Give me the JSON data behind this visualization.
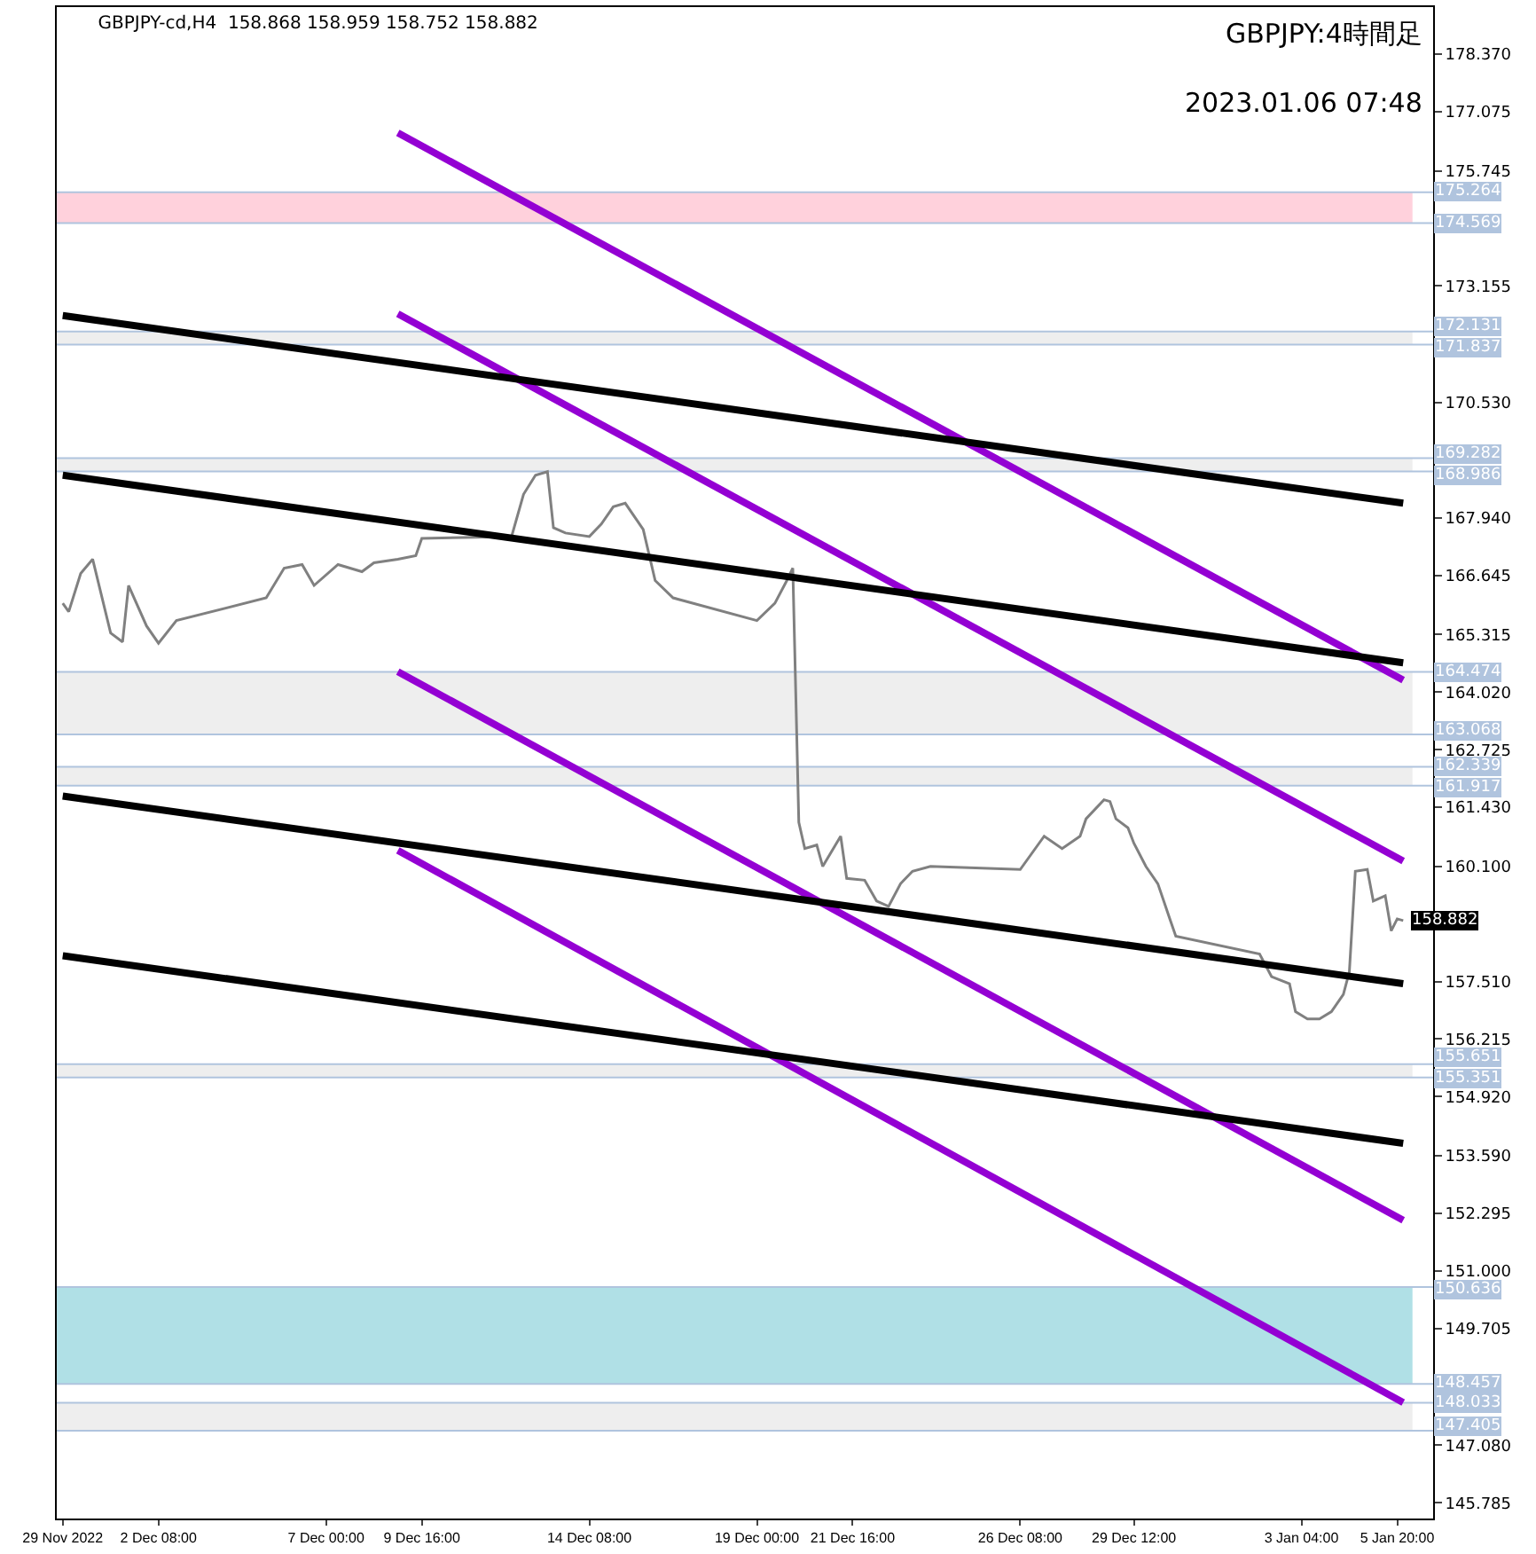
{
  "chart_data": {
    "type": "line",
    "title": "GBPJPY-cd,H4  158.868 158.959 158.752 158.882",
    "annotations": [
      "GBPJPY:4時間足",
      "2023.01.06 07:48"
    ],
    "xlim": [
      "2022-11-29T12:00",
      "2023-01-06T20:00"
    ],
    "xticks": [
      {
        "value": "2022-11-29T16:00",
        "label": "29 Nov 2022"
      },
      {
        "value": "2022-12-02T08:00",
        "label": "2 Dec 08:00"
      },
      {
        "value": "2022-12-07T00:00",
        "label": "7 Dec 00:00"
      },
      {
        "value": "2022-12-09T16:00",
        "label": "9 Dec 16:00"
      },
      {
        "value": "2022-12-14T08:00",
        "label": "14 Dec 08:00"
      },
      {
        "value": "2022-12-19T00:00",
        "label": "19 Dec 00:00"
      },
      {
        "value": "2022-12-21T16:00",
        "label": "21 Dec 16:00"
      },
      {
        "value": "2022-12-26T08:00",
        "label": "26 Dec 08:00"
      },
      {
        "value": "2022-12-29T12:00",
        "label": "29 Dec 12:00"
      },
      {
        "value": "2023-01-03T04:00",
        "label": "3 Jan 04:00"
      },
      {
        "value": "2023-01-05T20:00",
        "label": "5 Jan 20:00"
      }
    ],
    "ylim": [
      145.43,
      179.43
    ],
    "yticks": [
      {
        "value": 178.37,
        "label": "178.370"
      },
      {
        "value": 177.075,
        "label": "177.075"
      },
      {
        "value": 175.745,
        "label": "175.745"
      },
      {
        "value": 173.155,
        "label": "173.155"
      },
      {
        "value": 170.53,
        "label": "170.530"
      },
      {
        "value": 167.94,
        "label": "167.940"
      },
      {
        "value": 166.645,
        "label": "166.645"
      },
      {
        "value": 165.315,
        "label": "165.315"
      },
      {
        "value": 164.02,
        "label": "164.020"
      },
      {
        "value": 162.725,
        "label": "162.725"
      },
      {
        "value": 161.43,
        "label": "161.430"
      },
      {
        "value": 160.1,
        "label": "160.100"
      },
      {
        "value": 157.51,
        "label": "157.510"
      },
      {
        "value": 156.215,
        "label": "156.215"
      },
      {
        "value": 154.92,
        "label": "154.920"
      },
      {
        "value": 153.59,
        "label": "153.590"
      },
      {
        "value": 152.295,
        "label": "152.295"
      },
      {
        "value": 151.0,
        "label": "151.000"
      },
      {
        "value": 149.705,
        "label": "149.705"
      },
      {
        "value": 147.08,
        "label": "147.080"
      },
      {
        "value": 145.785,
        "label": "145.785"
      }
    ],
    "grid": false,
    "marker": "none",
    "line_style": "solid",
    "series": [
      {
        "color": "#808080",
        "x": [
          "2022-11-29T16:00",
          "2022-11-29T20:00",
          "2022-11-30T04:00",
          "2022-11-30T12:00",
          "2022-12-01T00:00",
          "2022-12-01T08:00",
          "2022-12-01T12:00",
          "2022-12-02T00:00",
          "2022-12-02T08:00",
          "2022-12-02T20:00",
          "2022-12-05T08:00",
          "2022-12-05T20:00",
          "2022-12-06T08:00",
          "2022-12-06T16:00",
          "2022-12-07T08:00",
          "2022-12-08T00:00",
          "2022-12-08T08:00",
          "2022-12-09T00:00",
          "2022-12-09T12:00",
          "2022-12-09T16:00",
          "2022-12-12T04:00",
          "2022-12-12T12:00",
          "2022-12-12T20:00",
          "2022-12-13T04:00",
          "2022-12-13T08:00",
          "2022-12-13T16:00",
          "2022-12-14T08:00",
          "2022-12-14T16:00",
          "2022-12-15T00:00",
          "2022-12-15T08:00",
          "2022-12-15T20:00",
          "2022-12-16T04:00",
          "2022-12-16T16:00",
          "2022-12-19T00:00",
          "2022-12-19T12:00",
          "2022-12-19T20:00",
          "2022-12-20T00:00",
          "2022-12-20T04:00",
          "2022-12-20T08:00",
          "2022-12-20T16:00",
          "2022-12-20T20:00",
          "2022-12-21T08:00",
          "2022-12-21T12:00",
          "2022-12-22T00:00",
          "2022-12-22T08:00",
          "2022-12-22T16:00",
          "2022-12-23T00:00",
          "2022-12-23T08:00",
          "2022-12-23T20:00",
          "2022-12-26T08:00",
          "2022-12-27T00:00",
          "2022-12-27T12:00",
          "2022-12-28T00:00",
          "2022-12-28T04:00",
          "2022-12-28T16:00",
          "2022-12-28T20:00",
          "2022-12-29T00:00",
          "2022-12-29T08:00",
          "2022-12-29T12:00",
          "2022-12-29T20:00",
          "2022-12-30T04:00",
          "2022-12-30T12:00",
          "2022-12-30T16:00",
          "2023-01-02T00:00",
          "2023-01-02T08:00",
          "2023-01-02T20:00",
          "2023-01-03T00:00",
          "2023-01-03T08:00",
          "2023-01-03T16:00",
          "2023-01-04T00:00",
          "2023-01-04T08:00",
          "2023-01-04T12:00",
          "2023-01-04T16:00",
          "2023-01-05T00:00",
          "2023-01-05T04:00",
          "2023-01-05T12:00",
          "2023-01-05T16:00",
          "2023-01-05T20:00",
          "2023-01-06T00:00"
        ],
        "values": [
          166.02,
          165.83,
          166.69,
          167.01,
          165.35,
          165.15,
          166.42,
          165.51,
          165.12,
          165.63,
          166.14,
          166.81,
          166.89,
          166.42,
          166.89,
          166.73,
          166.93,
          167.01,
          167.09,
          167.48,
          167.52,
          168.47,
          168.9,
          168.98,
          167.72,
          167.6,
          167.52,
          167.8,
          168.19,
          168.27,
          167.68,
          166.53,
          166.14,
          165.63,
          166.02,
          166.53,
          166.81,
          161.09,
          160.5,
          160.58,
          160.1,
          160.78,
          159.83,
          159.79,
          159.32,
          159.2,
          159.71,
          159.99,
          160.1,
          160.03,
          160.78,
          160.5,
          160.78,
          161.17,
          161.6,
          161.56,
          161.17,
          160.97,
          160.62,
          160.1,
          159.71,
          158.92,
          158.53,
          158.13,
          157.62,
          157.46,
          156.83,
          156.67,
          156.67,
          156.83,
          157.22,
          157.73,
          159.99,
          160.03,
          159.32,
          159.44,
          158.65,
          158.92,
          158.882
        ],
        "value_labels": [
          null,
          null,
          null,
          null,
          null,
          null,
          null,
          null,
          null,
          null,
          null,
          null,
          null,
          null,
          null,
          null,
          null,
          null,
          null,
          null,
          null,
          null,
          null,
          null,
          null,
          null,
          null,
          null,
          null,
          null,
          null,
          null,
          null,
          null,
          null,
          null,
          null,
          null,
          null,
          null,
          null,
          null,
          null,
          null,
          null,
          null,
          null,
          null,
          null,
          null,
          null,
          null,
          null,
          null,
          null,
          null,
          null,
          null,
          null,
          null,
          null,
          null,
          null,
          null,
          null,
          null,
          null,
          null,
          null,
          null,
          null,
          null,
          null,
          null,
          null,
          null,
          null,
          null,
          "158.882"
        ]
      },
      {
        "color": "#9400d3",
        "x": [
          "2022-12-09T00:00",
          "2023-01-06T00:00"
        ],
        "values": [
          176.6,
          164.29
        ]
      },
      {
        "color": "#9400d3",
        "x": [
          "2022-12-09T00:00",
          "2023-01-06T00:00"
        ],
        "values": [
          172.53,
          160.22
        ]
      },
      {
        "color": "#9400d3",
        "x": [
          "2022-12-09T00:00",
          "2023-01-06T00:00"
        ],
        "values": [
          164.48,
          152.14
        ]
      },
      {
        "color": "#9400d3",
        "x": [
          "2022-12-09T00:00",
          "2023-01-06T00:00"
        ],
        "values": [
          160.46,
          148.04
        ]
      },
      {
        "color": "#000000",
        "x": [
          "2022-11-29T16:00",
          "2023-01-06T00:00"
        ],
        "values": [
          172.49,
          168.27
        ]
      },
      {
        "color": "#000000",
        "x": [
          "2022-11-29T16:00",
          "2023-01-06T00:00"
        ],
        "values": [
          168.9,
          164.68
        ]
      },
      {
        "color": "#000000",
        "x": [
          "2022-11-29T16:00",
          "2023-01-06T00:00"
        ],
        "values": [
          161.68,
          157.46
        ]
      },
      {
        "color": "#000000",
        "x": [
          "2022-11-29T16:00",
          "2023-01-06T00:00"
        ],
        "values": [
          158.09,
          153.87
        ]
      }
    ],
    "bands": [
      {
        "axis": "y",
        "from": 174.569,
        "to": 175.264,
        "color": "#ffd1dc"
      },
      {
        "axis": "y",
        "from": 171.837,
        "to": 172.131,
        "color": "#eeeeee"
      },
      {
        "axis": "y",
        "from": 168.986,
        "to": 169.282,
        "color": "#eeeeee"
      },
      {
        "axis": "y",
        "from": 163.068,
        "to": 164.474,
        "color": "#eeeeee"
      },
      {
        "axis": "y",
        "from": 161.917,
        "to": 162.339,
        "color": "#eeeeee"
      },
      {
        "axis": "y",
        "from": 155.351,
        "to": 155.651,
        "color": "#eeeeee"
      },
      {
        "axis": "y",
        "from": 148.457,
        "to": 150.636,
        "color": "#b0e0e6"
      },
      {
        "axis": "y",
        "from": 147.405,
        "to": 148.033,
        "color": "#eeeeee"
      }
    ],
    "ref_lines": [
      {
        "axis": "y",
        "value": 175.264,
        "label": "175.264",
        "color": "#b0c4de"
      },
      {
        "axis": "y",
        "value": 174.569,
        "label": "174.569",
        "color": "#b0c4de"
      },
      {
        "axis": "y",
        "value": 172.131,
        "label": "172.131",
        "color": "#b0c4de"
      },
      {
        "axis": "y",
        "value": 171.837,
        "label": "171.837",
        "color": "#b0c4de"
      },
      {
        "axis": "y",
        "value": 169.282,
        "label": "169.282",
        "color": "#b0c4de"
      },
      {
        "axis": "y",
        "value": 168.986,
        "label": "168.986",
        "color": "#b0c4de"
      },
      {
        "axis": "y",
        "value": 164.474,
        "label": "164.474",
        "color": "#b0c4de"
      },
      {
        "axis": "y",
        "value": 163.068,
        "label": "163.068",
        "color": "#b0c4de"
      },
      {
        "axis": "y",
        "value": 162.339,
        "label": "162.339",
        "color": "#b0c4de"
      },
      {
        "axis": "y",
        "value": 161.917,
        "label": "161.917",
        "color": "#b0c4de"
      },
      {
        "axis": "y",
        "value": 155.651,
        "label": "155.651",
        "color": "#b0c4de"
      },
      {
        "axis": "y",
        "value": 155.351,
        "label": "155.351",
        "color": "#b0c4de"
      },
      {
        "axis": "y",
        "value": 150.636,
        "label": "150.636",
        "color": "#b0c4de"
      },
      {
        "axis": "y",
        "value": 148.457,
        "label": "148.457",
        "color": "#b0c4de"
      },
      {
        "axis": "y",
        "value": 148.033,
        "label": "148.033",
        "color": "#b0c4de"
      },
      {
        "axis": "y",
        "value": 147.405,
        "label": "147.405",
        "color": "#b0c4de"
      }
    ]
  }
}
